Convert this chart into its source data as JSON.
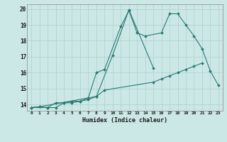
{
  "xlabel": "Humidex (Indice chaleur)",
  "background_color": "#cce8e6",
  "grid_color": "#aacfcd",
  "line_color": "#2a7a72",
  "xlim": [
    -0.5,
    23.5
  ],
  "ylim": [
    13.6,
    20.3
  ],
  "xticks": [
    0,
    1,
    2,
    3,
    4,
    5,
    6,
    7,
    8,
    9,
    10,
    11,
    12,
    13,
    14,
    15,
    16,
    17,
    18,
    19,
    20,
    21,
    22,
    23
  ],
  "yticks": [
    14,
    15,
    16,
    17,
    18,
    19,
    20
  ],
  "line1_x": [
    0,
    1,
    2,
    3,
    4,
    5,
    6,
    7,
    8,
    9,
    15,
    16,
    17,
    18,
    19,
    20,
    21
  ],
  "line1_y": [
    13.8,
    13.85,
    13.8,
    13.8,
    14.1,
    14.1,
    14.2,
    14.3,
    14.5,
    14.9,
    15.4,
    15.6,
    15.8,
    16.0,
    16.2,
    16.4,
    16.6
  ],
  "line2_x": [
    0,
    2,
    3,
    4,
    5,
    6,
    7,
    8,
    9,
    11,
    12,
    13,
    14,
    16,
    17,
    18,
    19,
    20,
    21,
    22,
    23
  ],
  "line2_y": [
    13.8,
    13.8,
    14.1,
    14.1,
    14.2,
    14.2,
    14.4,
    16.0,
    16.2,
    18.9,
    19.9,
    18.5,
    18.3,
    18.5,
    19.7,
    19.7,
    19.0,
    18.3,
    17.5,
    16.1,
    15.2
  ],
  "line3_x": [
    0,
    1,
    8,
    10,
    12,
    15
  ],
  "line3_y": [
    13.8,
    13.85,
    14.5,
    17.1,
    19.95,
    16.3
  ]
}
